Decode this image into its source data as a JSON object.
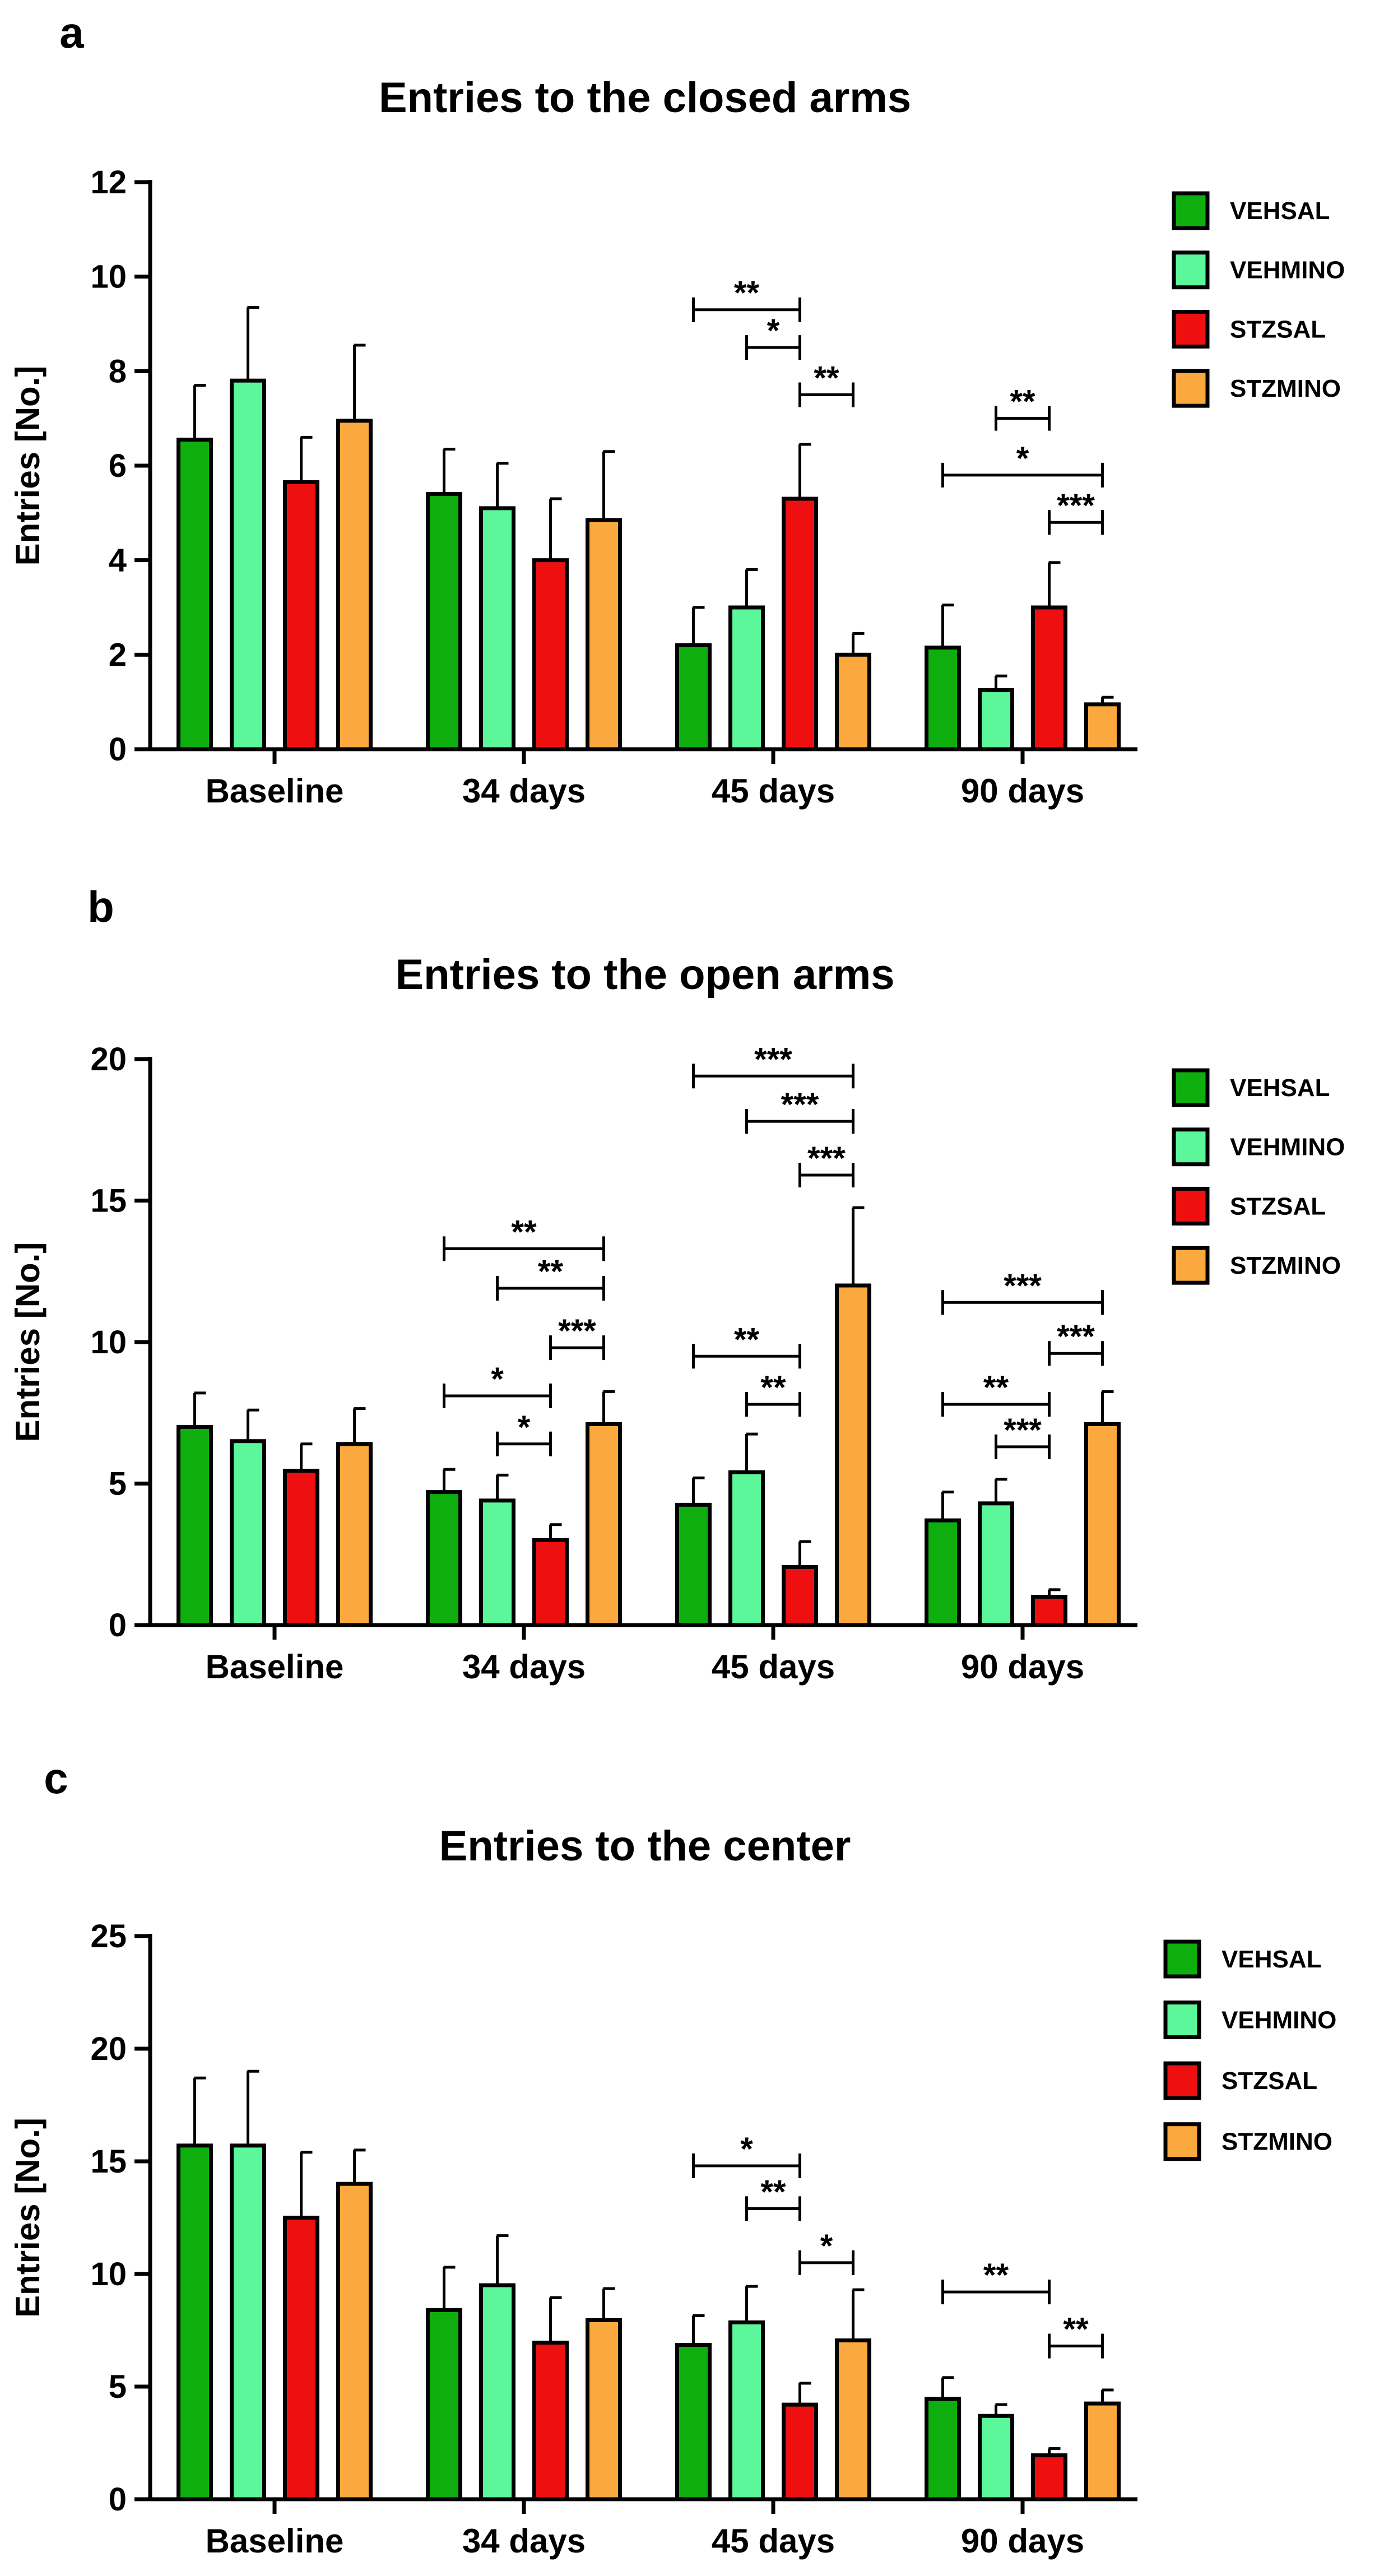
{
  "colors": {
    "VEHSAL": "#0fae0f",
    "VEHMINO": "#5cf79b",
    "STZSAL": "#ee1010",
    "STZMINO": "#fba83e",
    "stroke": "#000000"
  },
  "chart_data": [
    {
      "panel_label": "a",
      "type": "bar",
      "title": "Entries to the closed arms",
      "ylabel": "Entries [No.]",
      "xlabel": "",
      "ylim": [
        0,
        12
      ],
      "yticks": [
        0,
        2,
        4,
        6,
        8,
        10,
        12
      ],
      "ytick_labels": [
        "0",
        "2",
        "4",
        "6",
        "8",
        "10",
        "12"
      ],
      "categories": [
        "Baseline",
        "34 days",
        "45 days",
        "90 days"
      ],
      "legend": [
        "VEHSAL",
        "VEHMINO",
        "STZSAL",
        "STZMINO"
      ],
      "legend_position": "right",
      "series": [
        {
          "name": "VEHSAL",
          "values": [
            6.55,
            5.4,
            2.2,
            2.15
          ],
          "errors": [
            1.15,
            0.95,
            0.8,
            0.9
          ]
        },
        {
          "name": "VEHMINO",
          "values": [
            7.8,
            5.1,
            3.0,
            1.25
          ],
          "errors": [
            1.55,
            0.95,
            0.8,
            0.3
          ]
        },
        {
          "name": "STZSAL",
          "values": [
            5.65,
            4.0,
            5.3,
            3.0
          ],
          "errors": [
            0.95,
            1.3,
            1.15,
            0.95
          ]
        },
        {
          "name": "STZMINO",
          "values": [
            6.95,
            4.85,
            2.0,
            0.95
          ],
          "errors": [
            1.6,
            1.45,
            0.45,
            0.15
          ]
        }
      ],
      "significance": [
        {
          "category": 2,
          "from": 0,
          "to": 2,
          "y": 9.3,
          "label": "**"
        },
        {
          "category": 2,
          "from": 1,
          "to": 2,
          "y": 8.5,
          "label": "*"
        },
        {
          "category": 2,
          "from": 2,
          "to": 3,
          "y": 7.5,
          "label": "**"
        },
        {
          "category": 3,
          "from": 1,
          "to": 2,
          "y": 7.0,
          "label": "**"
        },
        {
          "category": 3,
          "from": 0,
          "to": 3,
          "y": 5.8,
          "label": "*"
        },
        {
          "category": 3,
          "from": 2,
          "to": 3,
          "y": 4.8,
          "label": "***"
        }
      ]
    },
    {
      "panel_label": "b",
      "type": "bar",
      "title": "Entries to the open arms",
      "ylabel": "Entries [No.]",
      "xlabel": "",
      "ylim": [
        0,
        20
      ],
      "yticks": [
        0,
        5,
        10,
        15,
        20
      ],
      "ytick_labels": [
        "0",
        "5",
        "10",
        "15",
        "20"
      ],
      "categories": [
        "Baseline",
        "34 days",
        "45 days",
        "90 days"
      ],
      "legend": [
        "VEHSAL",
        "VEHMINO",
        "STZSAL",
        "STZMINO"
      ],
      "legend_position": "right",
      "series": [
        {
          "name": "VEHSAL",
          "values": [
            7.0,
            4.7,
            4.25,
            3.7
          ],
          "errors": [
            1.2,
            0.8,
            0.95,
            1.0
          ]
        },
        {
          "name": "VEHMINO",
          "values": [
            6.5,
            4.4,
            5.4,
            4.3
          ],
          "errors": [
            1.1,
            0.9,
            1.35,
            0.85
          ]
        },
        {
          "name": "STZSAL",
          "values": [
            5.45,
            3.0,
            2.05,
            1.0
          ],
          "errors": [
            0.95,
            0.55,
            0.9,
            0.25
          ]
        },
        {
          "name": "STZMINO",
          "values": [
            6.4,
            7.1,
            12.0,
            7.1
          ],
          "errors": [
            1.25,
            1.15,
            2.75,
            1.15
          ]
        }
      ],
      "significance": [
        {
          "category": 1,
          "from": 0,
          "to": 3,
          "y": 13.3,
          "label": "**"
        },
        {
          "category": 1,
          "from": 1,
          "to": 3,
          "y": 11.9,
          "label": "**"
        },
        {
          "category": 1,
          "from": 3,
          "to": 2,
          "y": 9.8,
          "label": "***"
        },
        {
          "category": 1,
          "from": 0,
          "to": 2,
          "y": 8.1,
          "label": "*"
        },
        {
          "category": 1,
          "from": 1,
          "to": 2,
          "y": 6.4,
          "label": "*"
        },
        {
          "category": 2,
          "from": 0,
          "to": 3,
          "y": 19.4,
          "label": "***"
        },
        {
          "category": 2,
          "from": 1,
          "to": 3,
          "y": 17.8,
          "label": "***"
        },
        {
          "category": 2,
          "from": 2,
          "to": 3,
          "y": 15.9,
          "label": "***"
        },
        {
          "category": 2,
          "from": 0,
          "to": 2,
          "y": 9.5,
          "label": "**"
        },
        {
          "category": 2,
          "from": 1,
          "to": 2,
          "y": 7.8,
          "label": "**"
        },
        {
          "category": 3,
          "from": 0,
          "to": 3,
          "y": 11.4,
          "label": "***"
        },
        {
          "category": 3,
          "from": 2,
          "to": 3,
          "y": 9.6,
          "label": "***"
        },
        {
          "category": 3,
          "from": 0,
          "to": 2,
          "y": 7.8,
          "label": "**"
        },
        {
          "category": 3,
          "from": 1,
          "to": 2,
          "y": 6.3,
          "label": "***"
        }
      ]
    },
    {
      "panel_label": "c",
      "type": "bar",
      "title": "Entries to the center",
      "ylabel": "Entries [No.]",
      "xlabel": "",
      "ylim": [
        0,
        25
      ],
      "yticks": [
        0,
        5,
        10,
        15,
        20,
        25
      ],
      "ytick_labels": [
        "0",
        "5",
        "10",
        "15",
        "20",
        "25"
      ],
      "categories": [
        "Baseline",
        "34 days",
        "45 days",
        "90 days"
      ],
      "legend": [
        "VEHSAL",
        "VEHMINO",
        "STZSAL",
        "STZMINO"
      ],
      "legend_position": "right",
      "series": [
        {
          "name": "VEHSAL",
          "values": [
            15.7,
            8.4,
            6.85,
            4.45
          ],
          "errors": [
            3.0,
            1.9,
            1.3,
            0.95
          ]
        },
        {
          "name": "VEHMINO",
          "values": [
            15.7,
            9.5,
            7.85,
            3.7
          ],
          "errors": [
            3.3,
            2.2,
            1.6,
            0.5
          ]
        },
        {
          "name": "STZSAL",
          "values": [
            12.5,
            6.95,
            4.2,
            1.95
          ],
          "errors": [
            2.9,
            2.0,
            0.95,
            0.3
          ]
        },
        {
          "name": "STZMINO",
          "values": [
            14.0,
            7.95,
            7.05,
            4.25
          ],
          "errors": [
            1.5,
            1.4,
            2.25,
            0.6
          ]
        }
      ],
      "significance": [
        {
          "category": 2,
          "from": 0,
          "to": 2,
          "y": 14.8,
          "label": "*"
        },
        {
          "category": 2,
          "from": 1,
          "to": 2,
          "y": 12.9,
          "label": "**"
        },
        {
          "category": 2,
          "from": 2,
          "to": 3,
          "y": 10.5,
          "label": "*"
        },
        {
          "category": 3,
          "from": 0,
          "to": 2,
          "y": 9.2,
          "label": "**"
        },
        {
          "category": 3,
          "from": 2,
          "to": 3,
          "y": 6.8,
          "label": "**"
        }
      ]
    }
  ]
}
